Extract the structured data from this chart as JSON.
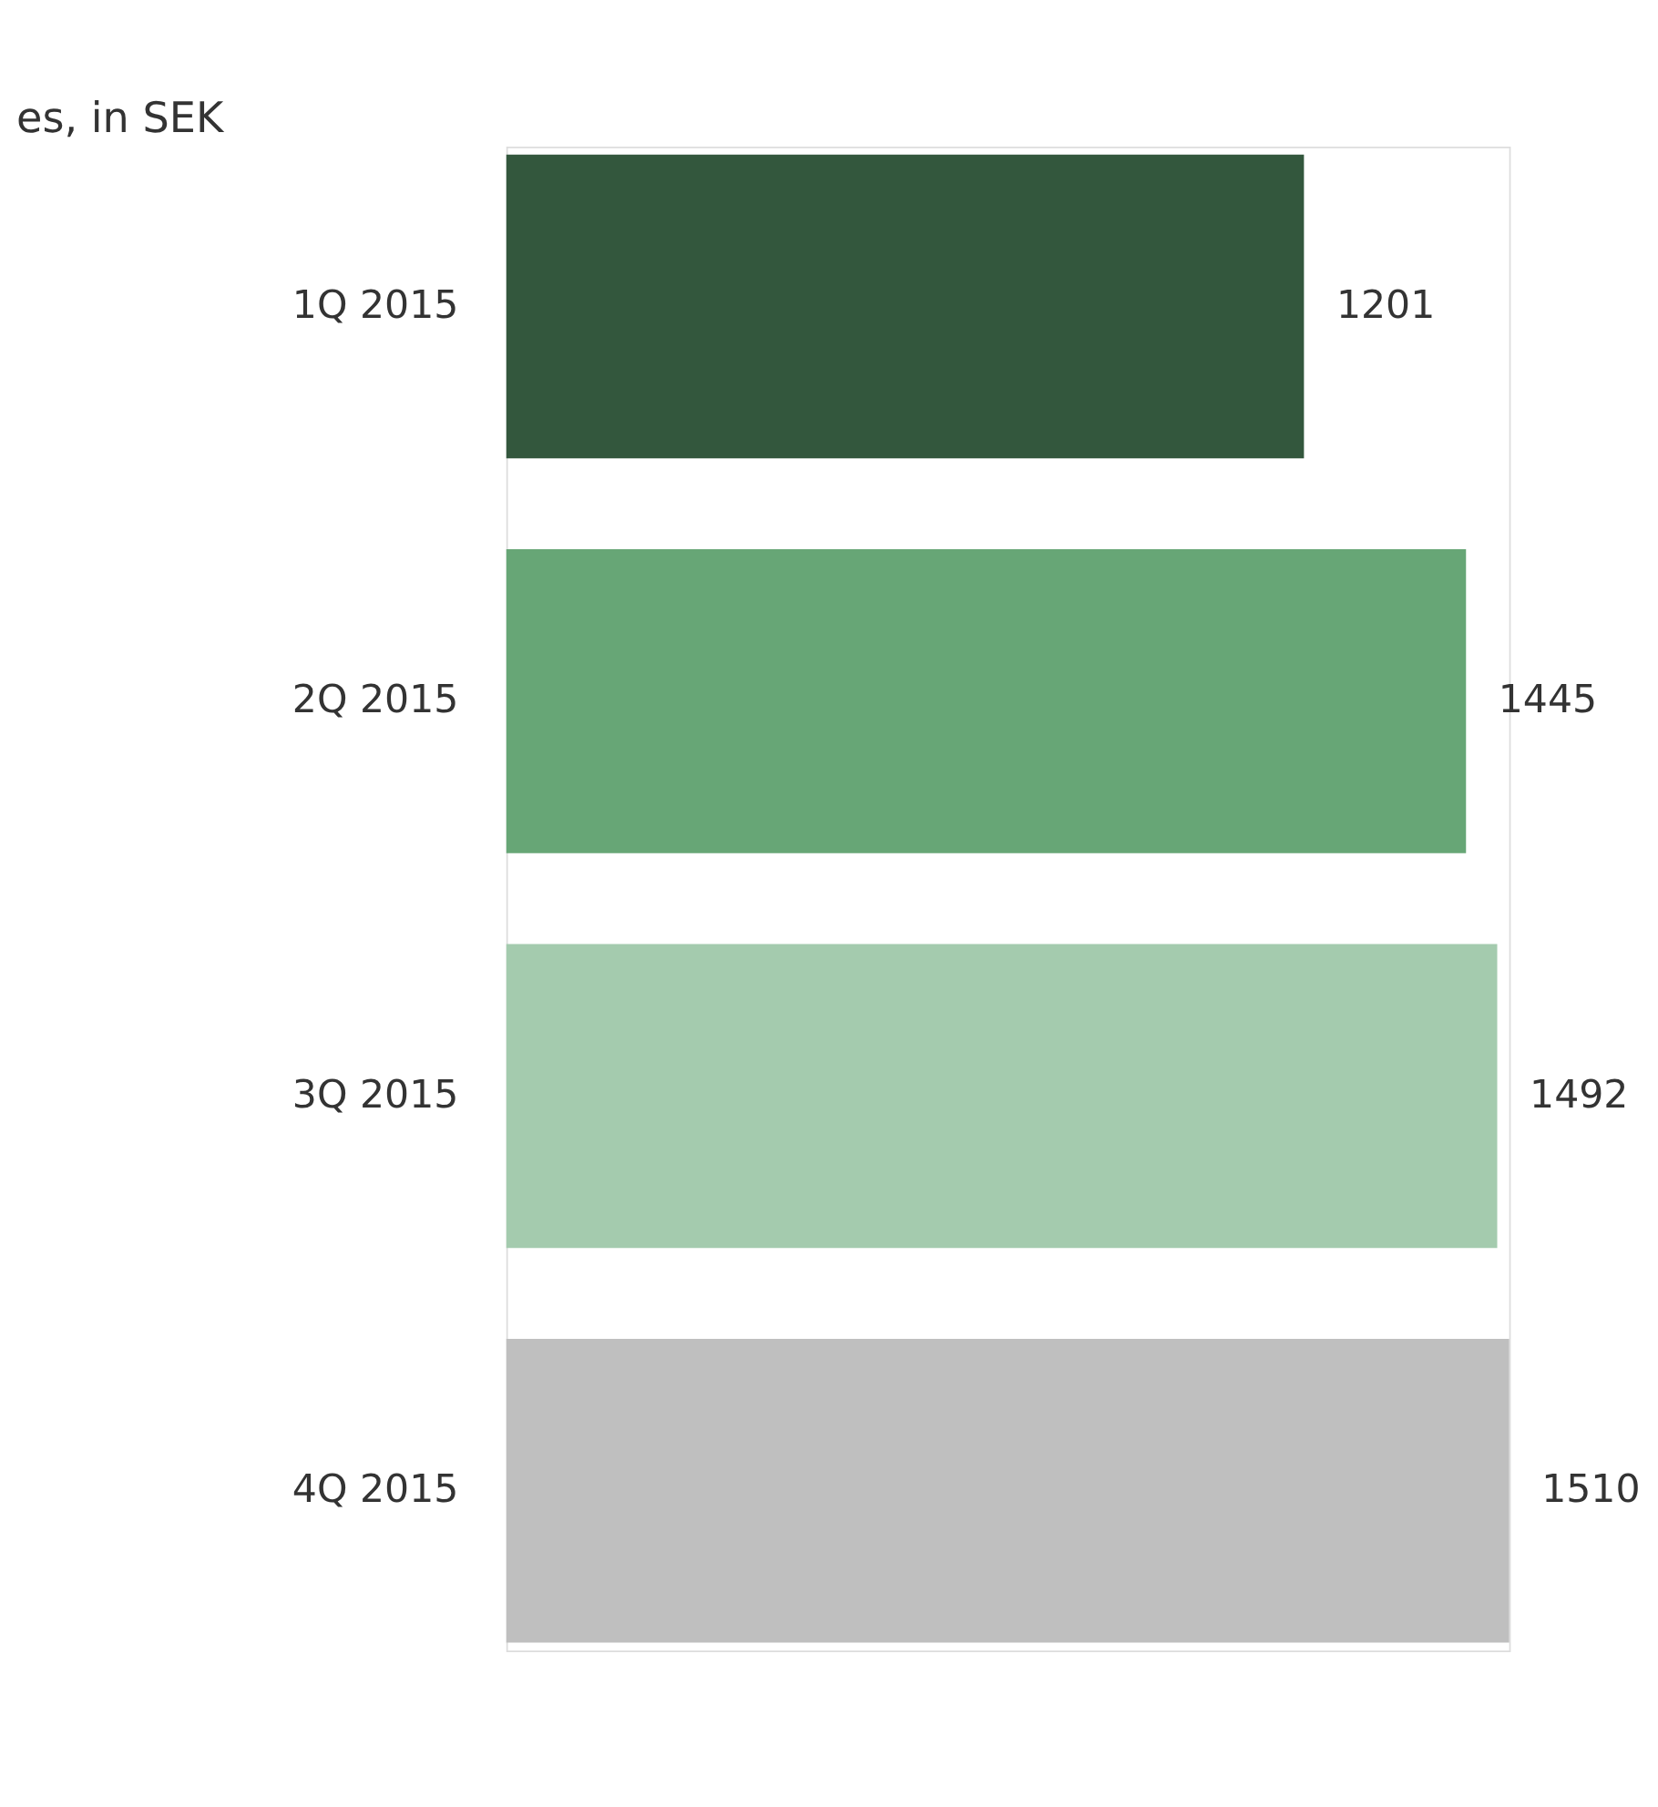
{
  "chart_data": {
    "type": "bar",
    "orientation": "horizontal",
    "title": "es, in SEK",
    "categories": [
      "1Q 2015",
      "2Q 2015",
      "3Q 2015",
      "4Q 2015"
    ],
    "values": [
      1201,
      1445,
      1492,
      1510
    ],
    "colors": [
      "#33573d",
      "#67a676",
      "#a4cbae",
      "#bfbfbf"
    ],
    "data_labels": true,
    "tick_labels": "y"
  }
}
